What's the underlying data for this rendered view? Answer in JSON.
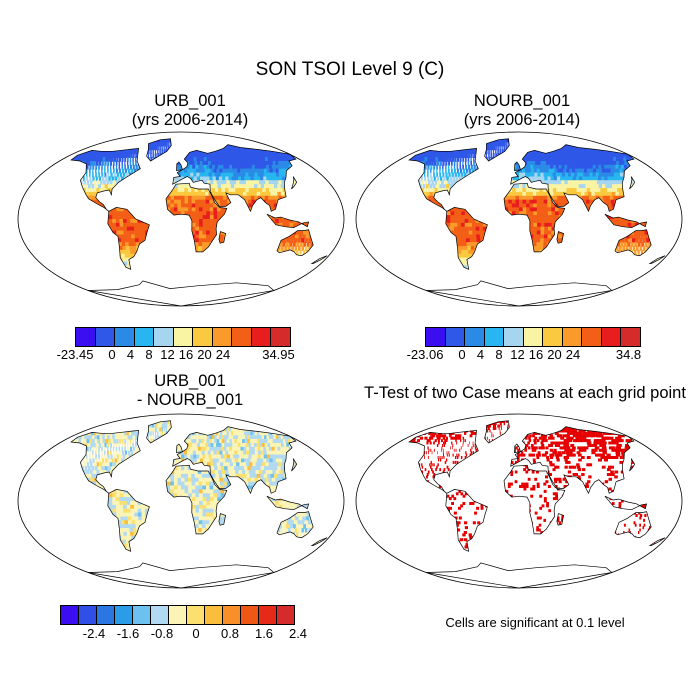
{
  "page_title": "SON TSOI Level 9 (C)",
  "panels": [
    {
      "title_line1": "URB_001",
      "title_line2": "(yrs 2006-2014)"
    },
    {
      "title_line1": "NOURB_001",
      "title_line2": "(yrs 2006-2014)"
    },
    {
      "title_line1": "URB_001",
      "title_line2": "- NOURB_001"
    },
    {
      "title_line1": "T-Test of two Case means at each grid point"
    }
  ],
  "significance_note": "Cells are significant at 0.1 level",
  "colors": {
    "main_scale": [
      "#3a0ef0",
      "#2f57e8",
      "#2b8ae6",
      "#27b6f0",
      "#a6d5ef",
      "#f9f3a4",
      "#fac93f",
      "#f99a2a",
      "#f35f16",
      "#e81d1d",
      "#d52b2b"
    ],
    "diff_scale": [
      "#3a0ef0",
      "#2f4fe6",
      "#2a77e3",
      "#2b9de8",
      "#6cc1ee",
      "#b1d9f1",
      "#fbf4b6",
      "#fbdf6f",
      "#fbbd3c",
      "#f98f29",
      "#ef5716",
      "#e62a1a",
      "#d52b2b"
    ],
    "significant": "#e60000"
  },
  "chart_data": [
    {
      "type": "heatmap",
      "title": "URB_001 (yrs 2006-2014)",
      "colorbar": {
        "min_label": "-23.45",
        "max_label": "34.95",
        "levels": [
          0,
          4,
          8,
          12,
          16,
          20,
          24
        ]
      }
    },
    {
      "type": "heatmap",
      "title": "NOURB_001 (yrs 2006-2014)",
      "colorbar": {
        "min_label": "-23.06",
        "max_label": "34.8",
        "levels": [
          0,
          4,
          8,
          12,
          16,
          20,
          24
        ]
      }
    },
    {
      "type": "heatmap",
      "title": "URB_001 - NOURB_001",
      "colorbar": {
        "levels": [
          -2.4,
          -1.6,
          -0.8,
          0,
          0.8,
          1.6,
          2.4
        ]
      }
    },
    {
      "type": "heatmap",
      "title": "T-Test of two Case means at each grid point",
      "note": "Cells are significant at 0.1 level"
    }
  ]
}
